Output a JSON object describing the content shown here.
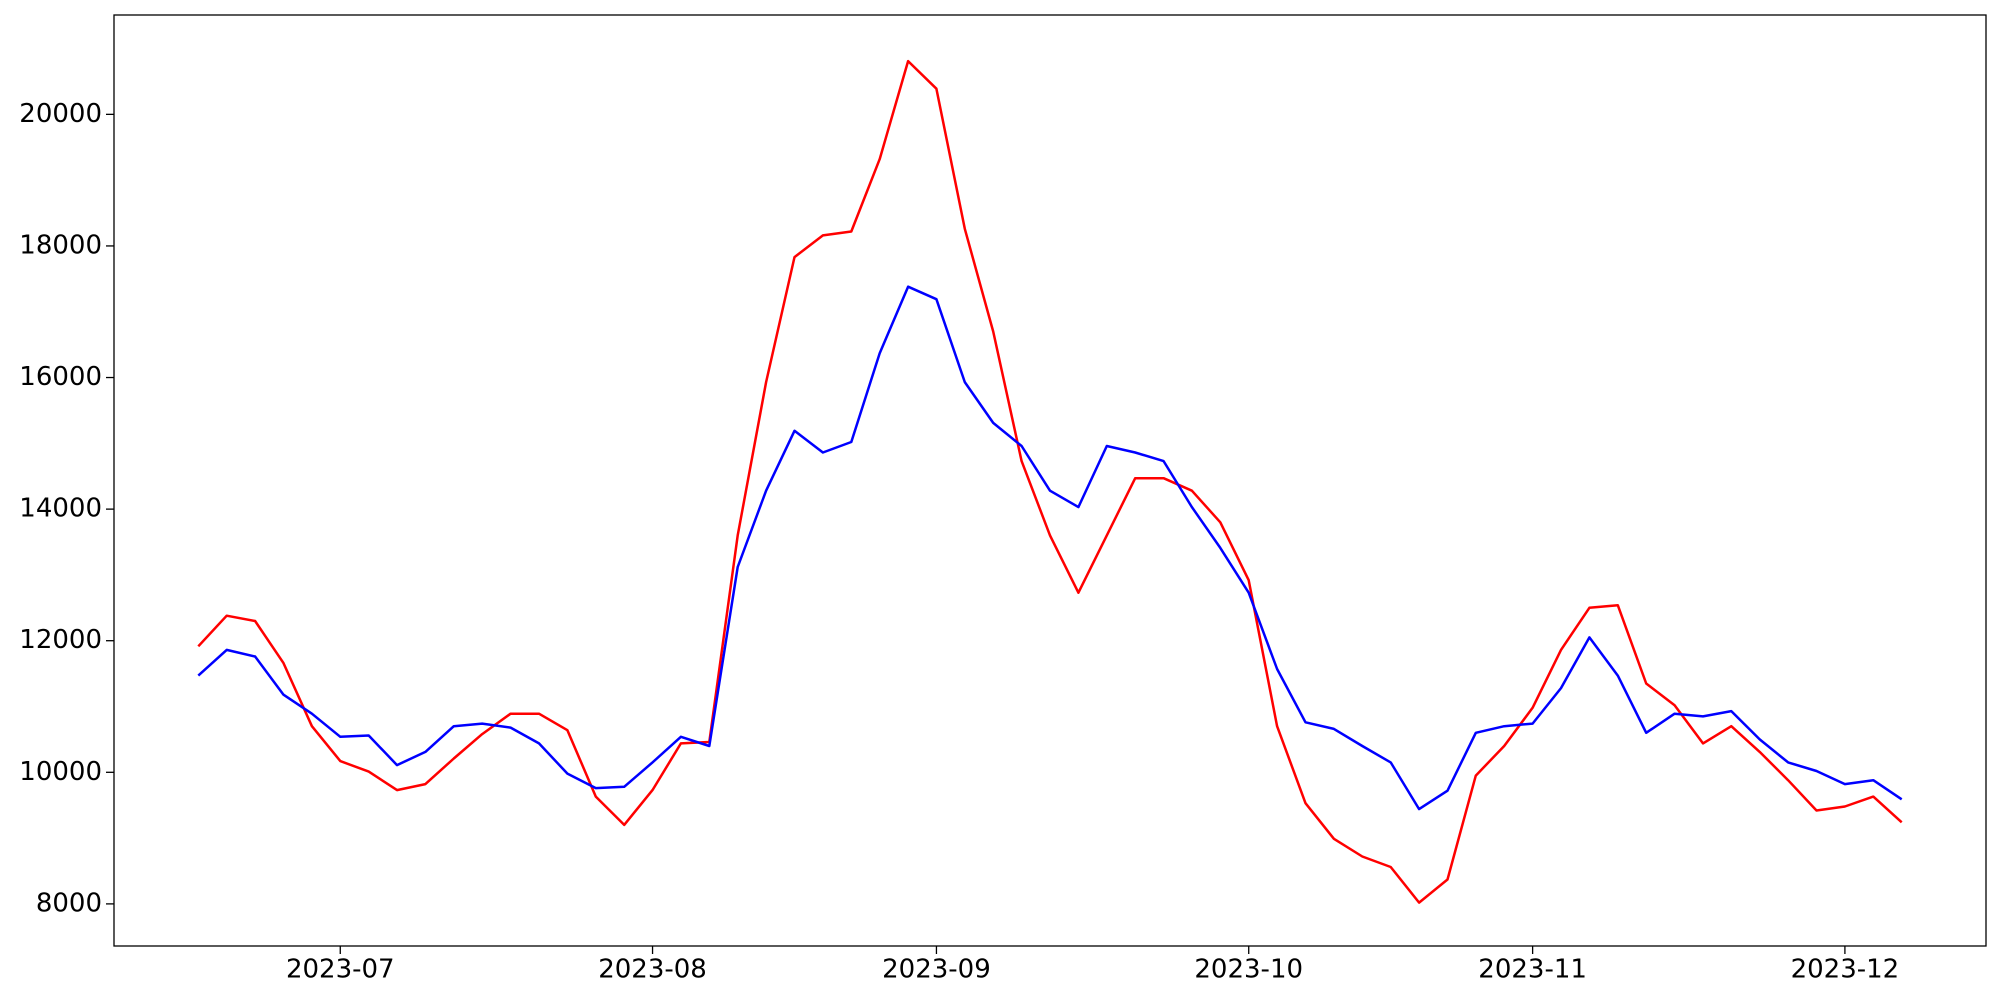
{
  "chart_data": {
    "type": "line",
    "categories": [
      null,
      null,
      null,
      null,
      null,
      "2023-07",
      null,
      null,
      null,
      null,
      null,
      null,
      null,
      null,
      null,
      null,
      "2023-08",
      null,
      null,
      null,
      null,
      null,
      null,
      null,
      null,
      null,
      "2023-09",
      null,
      null,
      null,
      null,
      null,
      null,
      null,
      null,
      null,
      null,
      "2023-10",
      null,
      null,
      null,
      null,
      null,
      null,
      null,
      null,
      null,
      "2023-11",
      null,
      null,
      null,
      null,
      null,
      null,
      null,
      null,
      null,
      null,
      "2023-12",
      null,
      null
    ],
    "series": [
      {
        "color": "#ff0000",
        "values": [
          11915,
          12380,
          12300,
          11660,
          10700,
          10170,
          10010,
          9730,
          9820,
          10210,
          10580,
          10890,
          10890,
          10640,
          9630,
          9200,
          9730,
          10440,
          10460,
          13600,
          15930,
          17830,
          18160,
          18220,
          19320,
          20810,
          20390,
          18260,
          16700,
          14730,
          13600,
          12730,
          13600,
          14470,
          14470,
          14280,
          13800,
          12920,
          10700,
          9530,
          8990,
          8720,
          8560,
          8020,
          8370,
          9950,
          10400,
          10980,
          11860,
          12500,
          12540,
          11350,
          11020,
          10440,
          10700,
          10310,
          9880,
          9420,
          9480,
          9630,
          9240
        ]
      },
      {
        "color": "#0000ff",
        "values": [
          11470,
          11860,
          11760,
          11180,
          10890,
          10540,
          10560,
          10110,
          10310,
          10700,
          10740,
          10680,
          10440,
          9980,
          9760,
          9780,
          10150,
          10540,
          10400,
          13120,
          14280,
          15190,
          14860,
          15020,
          16370,
          17380,
          17190,
          15930,
          15310,
          14960,
          14280,
          14030,
          14960,
          14860,
          14730,
          14030,
          13410,
          12730,
          11570,
          10760,
          10660,
          10400,
          10150,
          9440,
          9720,
          10600,
          10700,
          10740,
          11280,
          12050,
          11470,
          10600,
          10890,
          10850,
          10930,
          10500,
          10150,
          10020,
          9820,
          9880,
          9590
        ]
      }
    ],
    "ylim": [
      7360,
      21510
    ],
    "yticks": [
      8000,
      10000,
      12000,
      14000,
      16000,
      18000,
      20000
    ],
    "grid": false
  }
}
